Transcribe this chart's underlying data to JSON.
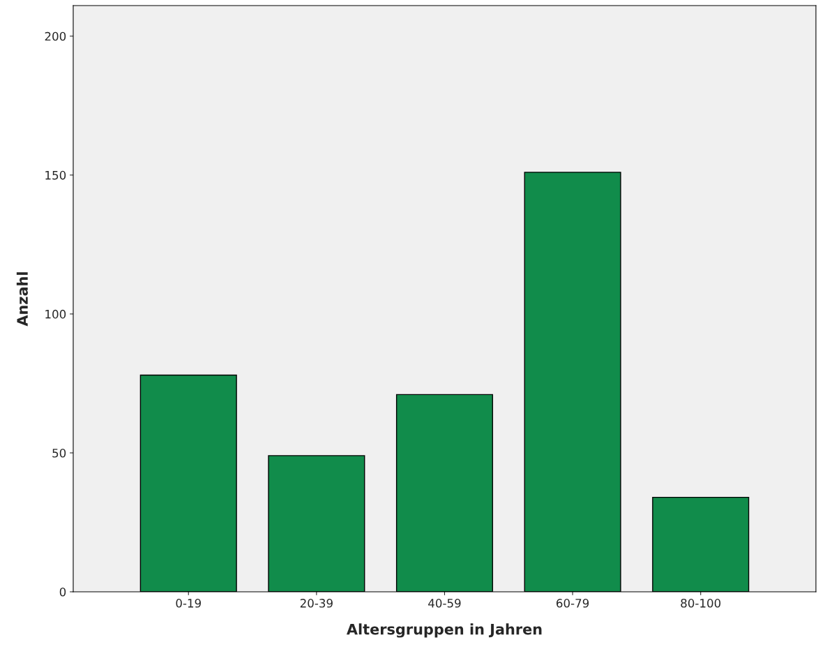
{
  "chart_data": {
    "type": "bar",
    "xlabel": "Altersgruppen in Jahren",
    "ylabel": "Anzahl",
    "categories": [
      "0-19",
      "20-39",
      "40-59",
      "60-79",
      "80-100"
    ],
    "values": [
      78,
      49,
      71,
      151,
      34
    ],
    "color": "#118c4b",
    "ylim": [
      0,
      211
    ],
    "yticks": [
      0,
      50,
      100,
      150,
      200
    ],
    "grid": false
  }
}
